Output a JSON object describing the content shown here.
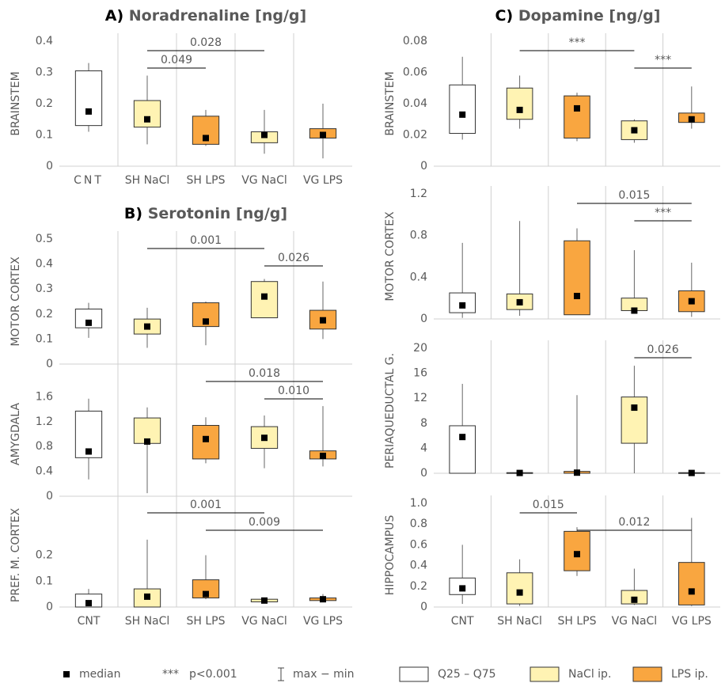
{
  "chart_data": [
    {
      "type": "box",
      "panel_label": "A)",
      "title": "Noradrenaline [ng/g]",
      "ylabel": "BRAINSTEM",
      "categories": [
        "CNT",
        "SH NaCl",
        "SH LPS",
        "VG NaCl",
        "VG LPS"
      ],
      "colors": [
        "#ffffff",
        "#fff3b3",
        "#f9a640",
        "#fff3b3",
        "#f9a640"
      ],
      "ylim": [
        0,
        0.4
      ],
      "yticks": [
        0,
        0.1,
        0.2,
        0.3,
        0.4
      ],
      "boxes": [
        {
          "min": 0.11,
          "q1": 0.13,
          "median": 0.175,
          "q3": 0.305,
          "max": 0.33
        },
        {
          "min": 0.07,
          "q1": 0.125,
          "median": 0.15,
          "q3": 0.21,
          "max": 0.29
        },
        {
          "min": 0.065,
          "q1": 0.07,
          "median": 0.09,
          "q3": 0.16,
          "max": 0.18
        },
        {
          "min": 0.04,
          "q1": 0.075,
          "median": 0.1,
          "q3": 0.11,
          "max": 0.18
        },
        {
          "min": 0.025,
          "q1": 0.09,
          "median": 0.1,
          "q3": 0.12,
          "max": 0.2
        }
      ],
      "brackets": [
        {
          "label": "0.028",
          "from": "SH NaCl",
          "to": "VG NaCl"
        },
        {
          "label": "0.049",
          "from": "SH NaCl",
          "to": "SH LPS"
        }
      ]
    },
    {
      "type": "box",
      "panel_label": "B)",
      "title": "Serotonin [ng/g]",
      "ylabel": "MOTOR CORTEX",
      "colors": [
        "#ffffff",
        "#fff3b3",
        "#f9a640",
        "#fff3b3",
        "#f9a640"
      ],
      "ylim": [
        0,
        0.5
      ],
      "yticks": [
        0,
        0.1,
        0.2,
        0.3,
        0.4,
        0.5
      ],
      "boxes": [
        {
          "min": 0.105,
          "q1": 0.145,
          "median": 0.165,
          "q3": 0.22,
          "max": 0.245
        },
        {
          "min": 0.065,
          "q1": 0.12,
          "median": 0.15,
          "q3": 0.18,
          "max": 0.225
        },
        {
          "min": 0.075,
          "q1": 0.15,
          "median": 0.17,
          "q3": 0.245,
          "max": 0.25
        },
        {
          "min": 0.185,
          "q1": 0.185,
          "median": 0.27,
          "q3": 0.33,
          "max": 0.34
        },
        {
          "min": 0.1,
          "q1": 0.14,
          "median": 0.175,
          "q3": 0.215,
          "max": 0.33
        }
      ],
      "brackets": [
        {
          "label": "0.001",
          "from": "SH NaCl",
          "to": "VG NaCl"
        },
        {
          "label": "0.026",
          "from": "VG NaCl",
          "to": "VG LPS"
        }
      ]
    },
    {
      "type": "box",
      "ylabel": "AMYGDALA",
      "colors": [
        "#ffffff",
        "#fff3b3",
        "#f9a640",
        "#fff3b3",
        "#f9a640"
      ],
      "ylim": [
        0,
        2
      ],
      "yticks": [
        0,
        0.4,
        0.8,
        1.2,
        1.6
      ],
      "boxes": [
        {
          "min": 0.27,
          "q1": 0.62,
          "median": 0.72,
          "q3": 1.37,
          "max": 1.57
        },
        {
          "min": 0.05,
          "q1": 0.85,
          "median": 0.88,
          "q3": 1.26,
          "max": 1.43
        },
        {
          "min": 0.53,
          "q1": 0.6,
          "median": 0.92,
          "q3": 1.14,
          "max": 1.27
        },
        {
          "min": 0.45,
          "q1": 0.77,
          "median": 0.94,
          "q3": 1.12,
          "max": 1.3
        },
        {
          "min": 0.48,
          "q1": 0.6,
          "median": 0.65,
          "q3": 0.73,
          "max": 1.45
        }
      ],
      "brackets": [
        {
          "label": "0.018",
          "from": "SH LPS",
          "to": "VG LPS"
        },
        {
          "label": "0.010",
          "from": "VG NaCl",
          "to": "VG LPS"
        }
      ]
    },
    {
      "type": "box",
      "ylabel": "PREF. M. CORTEX",
      "categories": [
        "CNT",
        "SH NaCl",
        "SH LPS",
        "VG NaCl",
        "VG LPS"
      ],
      "colors": [
        "#ffffff",
        "#fff3b3",
        "#f9a640",
        "#fff3b3",
        "#f9a640"
      ],
      "ylim": [
        0,
        0.4
      ],
      "yticks": [
        0,
        0.1,
        0.2
      ],
      "boxes": [
        {
          "min": 0,
          "q1": 0,
          "median": 0.015,
          "q3": 0.05,
          "max": 0.07
        },
        {
          "min": 0,
          "q1": 0,
          "median": 0.04,
          "q3": 0.07,
          "max": 0.26
        },
        {
          "min": 0.03,
          "q1": 0.035,
          "median": 0.05,
          "q3": 0.105,
          "max": 0.2
        },
        {
          "min": 0.02,
          "q1": 0.02,
          "median": 0.025,
          "q3": 0.03,
          "max": 0.03
        },
        {
          "min": 0.02,
          "q1": 0.025,
          "median": 0.03,
          "q3": 0.035,
          "max": 0.05
        }
      ],
      "brackets": [
        {
          "label": "0.001",
          "from": "SH NaCl",
          "to": "VG NaCl"
        },
        {
          "label": "0.009",
          "from": "SH LPS",
          "to": "VG LPS"
        }
      ]
    },
    {
      "type": "box",
      "panel_label": "C)",
      "title": "Dopamine [ng/g]",
      "ylabel": "BRAINSTEM",
      "colors": [
        "#ffffff",
        "#fff3b3",
        "#f9a640",
        "#fff3b3",
        "#f9a640"
      ],
      "ylim": [
        0,
        0.08
      ],
      "yticks": [
        0,
        0.02,
        0.04,
        0.06,
        0.08
      ],
      "boxes": [
        {
          "min": 0.017,
          "q1": 0.021,
          "median": 0.033,
          "q3": 0.052,
          "max": 0.07
        },
        {
          "min": 0.024,
          "q1": 0.03,
          "median": 0.036,
          "q3": 0.05,
          "max": 0.058
        },
        {
          "min": 0.016,
          "q1": 0.018,
          "median": 0.037,
          "q3": 0.045,
          "max": 0.047
        },
        {
          "min": 0.015,
          "q1": 0.017,
          "median": 0.023,
          "q3": 0.029,
          "max": 0.03
        },
        {
          "min": 0.024,
          "q1": 0.028,
          "median": 0.03,
          "q3": 0.034,
          "max": 0.051
        }
      ],
      "brackets": [
        {
          "label": "***",
          "from": "SH NaCl",
          "to": "VG NaCl"
        },
        {
          "label": "***",
          "from": "VG NaCl",
          "to": "VG LPS"
        }
      ]
    },
    {
      "type": "box",
      "ylabel": "MOTOR CORTEX",
      "colors": [
        "#ffffff",
        "#fff3b3",
        "#f9a640",
        "#fff3b3",
        "#f9a640"
      ],
      "ylim": [
        0,
        1.2
      ],
      "yticks": [
        0,
        0.4,
        0.8,
        1.2
      ],
      "boxes": [
        {
          "min": 0.01,
          "q1": 0.06,
          "median": 0.13,
          "q3": 0.25,
          "max": 0.73
        },
        {
          "min": 0.03,
          "q1": 0.09,
          "median": 0.16,
          "q3": 0.24,
          "max": 0.94
        },
        {
          "min": 0.04,
          "q1": 0.04,
          "median": 0.22,
          "q3": 0.75,
          "max": 0.87
        },
        {
          "min": 0.07,
          "q1": 0.08,
          "median": 0.08,
          "q3": 0.2,
          "max": 0.66
        },
        {
          "min": 0.02,
          "q1": 0.07,
          "median": 0.17,
          "q3": 0.27,
          "max": 0.54
        }
      ],
      "brackets": [
        {
          "label": "0.015",
          "from": "SH LPS",
          "to": "VG LPS"
        },
        {
          "label": "***",
          "from": "VG NaCl",
          "to": "VG LPS"
        }
      ]
    },
    {
      "type": "box",
      "ylabel": "PERIAQUEDUCTAL G.",
      "colors": [
        "#ffffff",
        "#fff3b3",
        "#f9a640",
        "#fff3b3",
        "#f9a640"
      ],
      "ylim": [
        0,
        20
      ],
      "yticks": [
        0,
        4,
        8,
        12,
        16,
        20
      ],
      "boxes": [
        {
          "min": 0,
          "q1": 0,
          "median": 5.8,
          "q3": 7.6,
          "max": 14.3
        },
        {
          "min": 0,
          "q1": 0,
          "median": 0.05,
          "q3": 0.1,
          "max": 0.2
        },
        {
          "min": 0,
          "q1": 0,
          "median": 0.1,
          "q3": 0.3,
          "max": 12.5
        },
        {
          "min": 0,
          "q1": 4.8,
          "median": 10.5,
          "q3": 12.2,
          "max": 17.2
        },
        {
          "min": 0,
          "q1": 0,
          "median": 0.05,
          "q3": 0.1,
          "max": 0.1
        }
      ],
      "brackets": [
        {
          "label": "0.026",
          "from": "VG NaCl",
          "to": "VG LPS"
        }
      ]
    },
    {
      "type": "box",
      "ylabel": "HIPPOCAMPUS",
      "categories": [
        "CNT",
        "SH NaCl",
        "SH LPS",
        "VG NaCl",
        "VG LPS"
      ],
      "colors": [
        "#ffffff",
        "#fff3b3",
        "#f9a640",
        "#fff3b3",
        "#f9a640"
      ],
      "ylim": [
        0,
        1
      ],
      "yticks": [
        0,
        0.2,
        0.4,
        0.6,
        0.8,
        {
          "value": 1,
          "label": "1.0"
        }
      ],
      "boxes": [
        {
          "min": 0.03,
          "q1": 0.12,
          "median": 0.18,
          "q3": 0.28,
          "max": 0.6
        },
        {
          "min": 0.01,
          "q1": 0.03,
          "median": 0.14,
          "q3": 0.33,
          "max": 0.46
        },
        {
          "min": 0.3,
          "q1": 0.35,
          "median": 0.51,
          "q3": 0.73,
          "max": 0.77
        },
        {
          "min": 0.02,
          "q1": 0.03,
          "median": 0.07,
          "q3": 0.16,
          "max": 0.37
        },
        {
          "min": 0.01,
          "q1": 0.02,
          "median": 0.15,
          "q3": 0.43,
          "max": 0.86
        }
      ],
      "brackets": [
        {
          "label": "0.015",
          "from": "SH NaCl",
          "to": "SH LPS"
        },
        {
          "label": "0.012",
          "from": "SH LPS",
          "to": "VG LPS"
        }
      ]
    }
  ],
  "legend": [
    {
      "label": "median"
    },
    {
      "symbol": "***",
      "label": "p<0.001"
    },
    {
      "label": "max − min"
    },
    {
      "label": "Q25 – Q75",
      "color": "#ffffff"
    },
    {
      "label": "NaCl ip.",
      "color": "#fff3b3"
    },
    {
      "label": "LPS ip.",
      "color": "#f9a640"
    }
  ]
}
